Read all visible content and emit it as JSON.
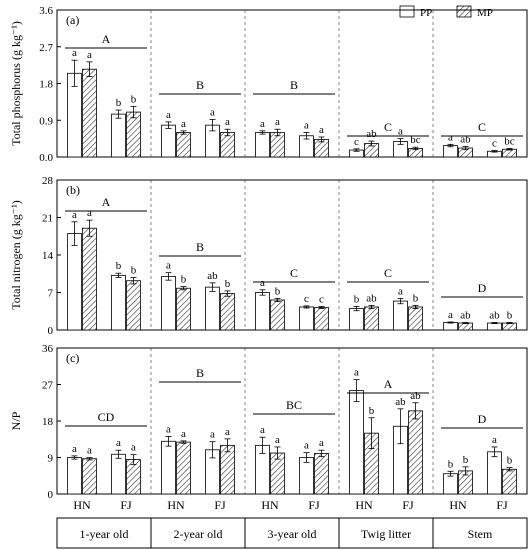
{
  "legend": {
    "items": [
      {
        "label": "PP",
        "pattern": "open"
      },
      {
        "label": "MP",
        "pattern": "hatched"
      }
    ],
    "placement": "top-right"
  },
  "groups": [
    "1-year old",
    "2-year old",
    "3-year old",
    "Twig litter",
    "Stem"
  ],
  "subcategories": [
    "HN",
    "FJ"
  ],
  "chart_data": [
    {
      "type": "bar",
      "panel": "(a)",
      "ylabel": "Total phosphorus (g kg⁻¹)",
      "ylim": [
        0,
        3.6
      ],
      "yticks": [
        "0.0",
        "0.9",
        "1.8",
        "2.7",
        "3.6"
      ],
      "categories": [
        "1-year old HN",
        "1-year old FJ",
        "2-year old HN",
        "2-year old FJ",
        "3-year old HN",
        "3-year old FJ",
        "Twig litter HN",
        "Twig litter FJ",
        "Stem HN",
        "Stem FJ"
      ],
      "series": [
        {
          "name": "PP",
          "values": [
            2.05,
            1.05,
            0.78,
            0.78,
            0.6,
            0.52,
            0.17,
            0.38,
            0.28,
            0.14
          ],
          "errors": [
            0.32,
            0.1,
            0.08,
            0.14,
            0.04,
            0.08,
            0.03,
            0.07,
            0.03,
            0.02
          ],
          "letters": [
            "a",
            "b",
            "a",
            "a",
            "a",
            "a",
            "c",
            "a",
            "a",
            "c"
          ]
        },
        {
          "name": "MP",
          "values": [
            2.15,
            1.1,
            0.6,
            0.6,
            0.6,
            0.43,
            0.33,
            0.21,
            0.22,
            0.19
          ],
          "errors": [
            0.18,
            0.14,
            0.04,
            0.08,
            0.08,
            0.06,
            0.06,
            0.03,
            0.04,
            0.02
          ],
          "letters": [
            "a",
            "b",
            "a",
            "a",
            "a",
            "a",
            "ab",
            "bc",
            "ab",
            "bc"
          ]
        }
      ],
      "group_letters": [
        "A",
        "B",
        "B",
        "C",
        "C"
      ]
    },
    {
      "type": "bar",
      "panel": "(b)",
      "ylabel": "Total nitrogen (g kg⁻¹)",
      "ylim": [
        0,
        28
      ],
      "yticks": [
        "0",
        "7",
        "14",
        "21",
        "28"
      ],
      "categories": [
        "1-year old HN",
        "1-year old FJ",
        "2-year old HN",
        "2-year old FJ",
        "3-year old HN",
        "3-year old FJ",
        "Twig litter HN",
        "Twig litter FJ",
        "Stem HN",
        "Stem FJ"
      ],
      "series": [
        {
          "name": "PP",
          "values": [
            18.0,
            10.2,
            10.0,
            8.0,
            7.0,
            4.3,
            4.0,
            5.4,
            1.4,
            1.3
          ],
          "errors": [
            2.2,
            0.4,
            0.7,
            0.8,
            0.5,
            0.2,
            0.4,
            0.5,
            0.1,
            0.1
          ],
          "letters": [
            "a",
            "b",
            "a",
            "ab",
            "a",
            "c",
            "b",
            "a",
            "a",
            "ab"
          ]
        },
        {
          "name": "MP",
          "values": [
            19.0,
            9.2,
            7.8,
            6.8,
            5.6,
            4.2,
            4.3,
            4.3,
            1.3,
            1.3
          ],
          "errors": [
            1.5,
            0.6,
            0.3,
            0.5,
            0.3,
            0.2,
            0.3,
            0.3,
            0.1,
            0.1
          ],
          "letters": [
            "a",
            "b",
            "b",
            "b",
            "b",
            "c",
            "ab",
            "b",
            "ab",
            "b"
          ]
        }
      ],
      "group_letters": [
        "A",
        "B",
        "C",
        "C",
        "D"
      ]
    },
    {
      "type": "bar",
      "panel": "(c)",
      "ylabel": "N/P",
      "ylim": [
        0,
        36
      ],
      "yticks": [
        "0",
        "9",
        "18",
        "27",
        "36"
      ],
      "categories": [
        "1-year old HN",
        "1-year old FJ",
        "2-year old HN",
        "2-year old FJ",
        "3-year old HN",
        "3-year old FJ",
        "Twig litter HN",
        "Twig litter FJ",
        "Stem HN",
        "Stem FJ"
      ],
      "series": [
        {
          "name": "PP",
          "values": [
            9.0,
            9.8,
            13.0,
            10.9,
            12.0,
            9.0,
            25.5,
            16.7,
            5.0,
            10.4
          ],
          "errors": [
            0.4,
            1.0,
            1.2,
            2.0,
            2.0,
            1.2,
            2.7,
            4.3,
            0.6,
            1.2
          ],
          "letters": [
            "a",
            "a",
            "a",
            "a",
            "a",
            "a",
            "a",
            "ab",
            "b",
            "a"
          ]
        },
        {
          "name": "MP",
          "values": [
            8.7,
            8.5,
            12.8,
            12.0,
            10.1,
            10.0,
            15.0,
            20.5,
            5.7,
            6.1
          ],
          "errors": [
            0.3,
            1.2,
            0.3,
            1.6,
            1.5,
            0.8,
            3.8,
            2.0,
            1.0,
            0.4
          ],
          "letters": [
            "a",
            "a",
            "a",
            "a",
            "a",
            "a",
            "b",
            "ab",
            "b",
            "b"
          ]
        }
      ],
      "group_letters": [
        "CD",
        "B",
        "BC",
        "A",
        "D"
      ]
    }
  ]
}
